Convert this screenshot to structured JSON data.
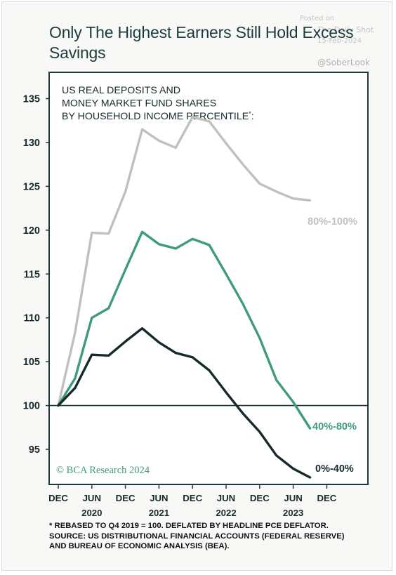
{
  "title": "Only The Highest Earners Still Hold Excess Savings",
  "watermark": {
    "posted": "Posted on",
    "source": "The Daily Shot",
    "date": "15-Feb-2024",
    "handle": "@SoberLook"
  },
  "chart_data": {
    "type": "line",
    "title_lines": [
      "US REAL DEPOSITS AND",
      "MONEY MARKET FUND SHARES",
      "BY HOUSEHOLD INCOME PERCENTILE*:"
    ],
    "x": [
      "2019-Q4",
      "2020-Q1",
      "2020-Q2",
      "2020-Q3",
      "2020-Q4",
      "2021-Q1",
      "2021-Q2",
      "2021-Q3",
      "2021-Q4",
      "2022-Q1",
      "2022-Q2",
      "2022-Q3",
      "2022-Q4",
      "2023-Q1",
      "2023-Q2",
      "2023-Q3"
    ],
    "series": [
      {
        "name": "80%-100%",
        "color": "#c0c0bc",
        "values": [
          100,
          108.3,
          119.7,
          119.6,
          124.4,
          131.5,
          130.2,
          129.4,
          132.9,
          132.4,
          129.9,
          127.5,
          125.3,
          124.4,
          123.6,
          123.4
        ]
      },
      {
        "name": "40%-80%",
        "color": "#3f9b7c",
        "values": [
          100,
          103.1,
          110.0,
          111.1,
          115.5,
          119.8,
          118.4,
          117.9,
          119.0,
          118.3,
          115.0,
          111.6,
          107.7,
          102.9,
          100.4,
          97.4
        ]
      },
      {
        "name": "0%-40%",
        "color": "#16292d",
        "values": [
          100,
          102.0,
          105.8,
          105.7,
          107.3,
          108.8,
          107.2,
          106.0,
          105.5,
          104.0,
          101.5,
          99.1,
          97.0,
          94.3,
          92.8,
          91.8
        ]
      }
    ],
    "ylim": [
      91,
      138
    ],
    "y_ticks": [
      95,
      100,
      105,
      110,
      115,
      120,
      125,
      130,
      135
    ],
    "reference_line": 100,
    "x_ticks": [
      {
        "label": "DEC",
        "at": "2019-Q4"
      },
      {
        "label": "JUN",
        "at": "2020-Q2"
      },
      {
        "label": "DEC",
        "at": "2020-Q4"
      },
      {
        "label": "JUN",
        "at": "2021-Q2"
      },
      {
        "label": "DEC",
        "at": "2021-Q4"
      },
      {
        "label": "JUN",
        "at": "2022-Q2"
      },
      {
        "label": "DEC",
        "at": "2022-Q4"
      },
      {
        "label": "JUN",
        "at": "2023-Q2"
      },
      {
        "label": "DEC",
        "at": "2023-Q4"
      }
    ],
    "year_labels": [
      {
        "label": "2020",
        "at": "2020-Q2"
      },
      {
        "label": "2021",
        "at": "2021-Q2"
      },
      {
        "label": "2022",
        "at": "2022-Q2"
      },
      {
        "label": "2023",
        "at": "2023-Q2"
      }
    ],
    "copyright": "© BCA Research 2024",
    "grid": false,
    "legend": "inline labels at line ends"
  },
  "footnote": [
    "* REBASED TO Q4 2019 = 100. DEFLATED BY HEADLINE PCE DEFLATOR.",
    "SOURCE: US DISTRIBUTIONAL FINANCIAL ACCOUNTS (FEDERAL RESERVE)",
    "AND BUREAU OF ECONOMIC ANALYSIS (BEA)."
  ]
}
